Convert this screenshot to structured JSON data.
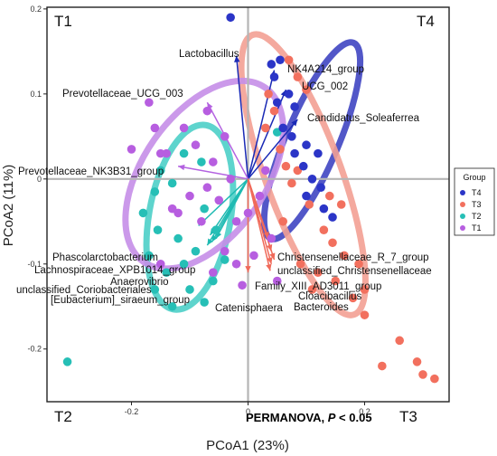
{
  "chart_data": {
    "type": "scatter",
    "subtype": "PCoA biplot",
    "xlabel": "PCoA1 (23%)",
    "ylabel": "PCoA2 (11%)",
    "xlim": [
      -0.345,
      0.345
    ],
    "ylim": [
      -0.262,
      0.202
    ],
    "xticks": [
      -0.2,
      0,
      0.2
    ],
    "xtick_labels": [
      "-0.2",
      "0",
      "0.2"
    ],
    "yticks": [
      -0.2,
      -0.1,
      0,
      0.1,
      0.2
    ],
    "ytick_labels": [
      "-0.2",
      "-0.1",
      "0",
      "0.1",
      "0.2"
    ],
    "reference_lines": {
      "x": 0,
      "y": 0
    },
    "grid": false,
    "quadrant_labels": {
      "top_left": "T1",
      "top_right": "T4",
      "bottom_left": "T2",
      "bottom_right": "T3"
    },
    "annotation": {
      "prefix": "PERMANOVA, ",
      "italic": "P",
      "suffix": " < 0.05"
    },
    "legend": {
      "title": "Group",
      "position": "right",
      "entries": [
        "T4",
        "T3",
        "T2",
        "T1"
      ]
    },
    "series": [
      {
        "name": "T4",
        "color": "#2b35c7",
        "ellipse_color": "#3f45c2",
        "ellipse": {
          "cx": 0.11,
          "cy": 0.045,
          "rx": 0.045,
          "ry": 0.125,
          "angle": 23
        },
        "points": [
          [
            -0.03,
            0.19
          ],
          [
            0.04,
            0.135
          ],
          [
            0.045,
            0.12
          ],
          [
            0.055,
            0.14
          ],
          [
            0.07,
            0.1
          ],
          [
            0.08,
            0.085
          ],
          [
            0.05,
            0.09
          ],
          [
            0.06,
            0.06
          ],
          [
            0.075,
            0.05
          ],
          [
            0.1,
            0.04
          ],
          [
            0.12,
            0.03
          ],
          [
            0.095,
            0.015
          ],
          [
            0.11,
            0.0
          ],
          [
            0.125,
            -0.01
          ],
          [
            0.1,
            -0.02
          ],
          [
            0.13,
            -0.035
          ],
          [
            0.145,
            -0.045
          ],
          [
            0.08,
            0.03
          ]
        ]
      },
      {
        "name": "T3",
        "color": "#f2705e",
        "ellipse_color": "#f3a094",
        "ellipse": {
          "cx": 0.095,
          "cy": 0.005,
          "rx": 0.065,
          "ry": 0.175,
          "angle": -20
        },
        "points": [
          [
            0.07,
            0.14
          ],
          [
            0.085,
            0.12
          ],
          [
            0.1,
            0.105
          ],
          [
            0.035,
            0.1
          ],
          [
            0.045,
            0.08
          ],
          [
            0.03,
            0.06
          ],
          [
            0.055,
            0.035
          ],
          [
            0.065,
            0.015
          ],
          [
            0.075,
            -0.005
          ],
          [
            0.085,
            0.01
          ],
          [
            0.105,
            -0.03
          ],
          [
            0.14,
            -0.02
          ],
          [
            0.16,
            -0.03
          ],
          [
            0.13,
            -0.06
          ],
          [
            0.145,
            -0.075
          ],
          [
            0.165,
            -0.09
          ],
          [
            0.19,
            -0.1
          ],
          [
            0.12,
            -0.11
          ],
          [
            0.15,
            -0.12
          ],
          [
            0.18,
            -0.14
          ],
          [
            0.2,
            -0.16
          ],
          [
            0.26,
            -0.19
          ],
          [
            0.29,
            -0.215
          ],
          [
            0.3,
            -0.23
          ],
          [
            0.23,
            -0.22
          ],
          [
            0.32,
            -0.235
          ],
          [
            0.09,
            -0.1
          ],
          [
            0.11,
            -0.13
          ],
          [
            0.2,
            -0.13
          ],
          [
            0.06,
            -0.05
          ]
        ]
      },
      {
        "name": "T2",
        "color": "#26bfb6",
        "ellipse_color": "#4dcfc8",
        "ellipse": {
          "cx": -0.1,
          "cy": -0.045,
          "rx": 0.07,
          "ry": 0.11,
          "angle": 10
        },
        "points": [
          [
            -0.31,
            -0.215
          ],
          [
            -0.16,
            -0.015
          ],
          [
            -0.11,
            0.03
          ],
          [
            -0.08,
            0.02
          ],
          [
            -0.13,
            -0.005
          ],
          [
            -0.075,
            -0.035
          ],
          [
            -0.155,
            -0.06
          ],
          [
            -0.12,
            -0.07
          ],
          [
            -0.09,
            -0.085
          ],
          [
            -0.17,
            -0.09
          ],
          [
            -0.14,
            -0.11
          ],
          [
            -0.11,
            -0.1
          ],
          [
            -0.06,
            -0.12
          ],
          [
            -0.075,
            -0.145
          ],
          [
            -0.16,
            -0.13
          ],
          [
            -0.13,
            -0.15
          ],
          [
            -0.04,
            -0.095
          ],
          [
            -0.18,
            -0.04
          ],
          [
            -0.055,
            -0.06
          ],
          [
            -0.15,
            0.01
          ],
          [
            0.05,
            0.055
          ],
          [
            -0.1,
            -0.13
          ]
        ]
      },
      {
        "name": "T1",
        "color": "#b75ee0",
        "ellipse_color": "#c58ee8",
        "ellipse": {
          "cx": -0.075,
          "cy": 0.005,
          "rx": 0.105,
          "ry": 0.125,
          "angle": 35
        },
        "points": [
          [
            -0.14,
            0.03
          ],
          [
            -0.16,
            0.06
          ],
          [
            -0.11,
            0.06
          ],
          [
            -0.09,
            0.04
          ],
          [
            -0.06,
            0.02
          ],
          [
            -0.04,
            0.05
          ],
          [
            -0.03,
            0.0
          ],
          [
            -0.05,
            -0.025
          ],
          [
            -0.07,
            -0.01
          ],
          [
            -0.1,
            -0.02
          ],
          [
            -0.12,
            -0.04
          ],
          [
            -0.02,
            -0.05
          ],
          [
            0.0,
            -0.04
          ],
          [
            0.02,
            -0.02
          ],
          [
            -0.08,
            -0.05
          ],
          [
            -0.04,
            -0.085
          ],
          [
            -0.02,
            -0.1
          ],
          [
            -0.06,
            -0.11
          ],
          [
            0.01,
            -0.09
          ],
          [
            0.04,
            -0.07
          ],
          [
            -0.01,
            -0.125
          ],
          [
            0.05,
            -0.12
          ],
          [
            -0.15,
            -0.1
          ],
          [
            -0.13,
            -0.035
          ],
          [
            -0.2,
            0.035
          ],
          [
            -0.17,
            0.09
          ],
          [
            0.03,
            0.01
          ],
          [
            -0.07,
            0.08
          ],
          [
            -0.15,
            0.03
          ]
        ]
      }
    ],
    "vectors": [
      {
        "label": "Lactobacillus",
        "x": -0.02,
        "y": 0.145,
        "color": "#1a2ab5"
      },
      {
        "label": "NK4A214_group",
        "x": 0.045,
        "y": 0.128,
        "color": "#1a2ab5"
      },
      {
        "label": "UCG_002",
        "x": 0.065,
        "y": 0.105,
        "color": "#1a2ab5"
      },
      {
        "label": "Candidatus_Soleaferrea",
        "x": 0.085,
        "y": 0.07,
        "color": "#1a2ab5"
      },
      {
        "label": "Prevotellaceae_UCG_003",
        "x": -0.07,
        "y": 0.09,
        "color": "#b362e0"
      },
      {
        "label": "Prevotellaceae_NK3B31_group",
        "x": -0.12,
        "y": 0.015,
        "color": "#b362e0"
      },
      {
        "label": "Phascolarctobacterium",
        "x": -0.085,
        "y": -0.055,
        "color": "#1fbab2"
      },
      {
        "label": "Lachnospiraceae_XPB1014_group",
        "x": -0.065,
        "y": -0.066,
        "color": "#1fbab2"
      },
      {
        "label": "Anaerovibrio",
        "x": -0.055,
        "y": -0.07,
        "color": "#1fbab2"
      },
      {
        "label": "unclassified_Coriobacteriales",
        "x": -0.062,
        "y": -0.074,
        "color": "#1fbab2"
      },
      {
        "label": "[Eubacterium]_siraeum_group",
        "x": -0.07,
        "y": -0.078,
        "color": "#1fbab2"
      },
      {
        "label": "Christensenellaceae_R_7_group",
        "x": 0.035,
        "y": -0.07,
        "color": "#f06a5a"
      },
      {
        "label": "unclassified_Christensenellaceae",
        "x": 0.04,
        "y": -0.085,
        "color": "#f06a5a"
      },
      {
        "label": "Family_XIII_AD3011_group",
        "x": 0.045,
        "y": -0.095,
        "color": "#f06a5a"
      },
      {
        "label": "Cloacibacillus",
        "x": 0.04,
        "y": -0.1,
        "color": "#f06a5a"
      },
      {
        "label": "Bacteroides",
        "x": 0.038,
        "y": -0.108,
        "color": "#f06a5a"
      },
      {
        "label": "Catenisphaera",
        "x": 0.0,
        "y": -0.11,
        "color": "#f06a5a"
      }
    ]
  }
}
